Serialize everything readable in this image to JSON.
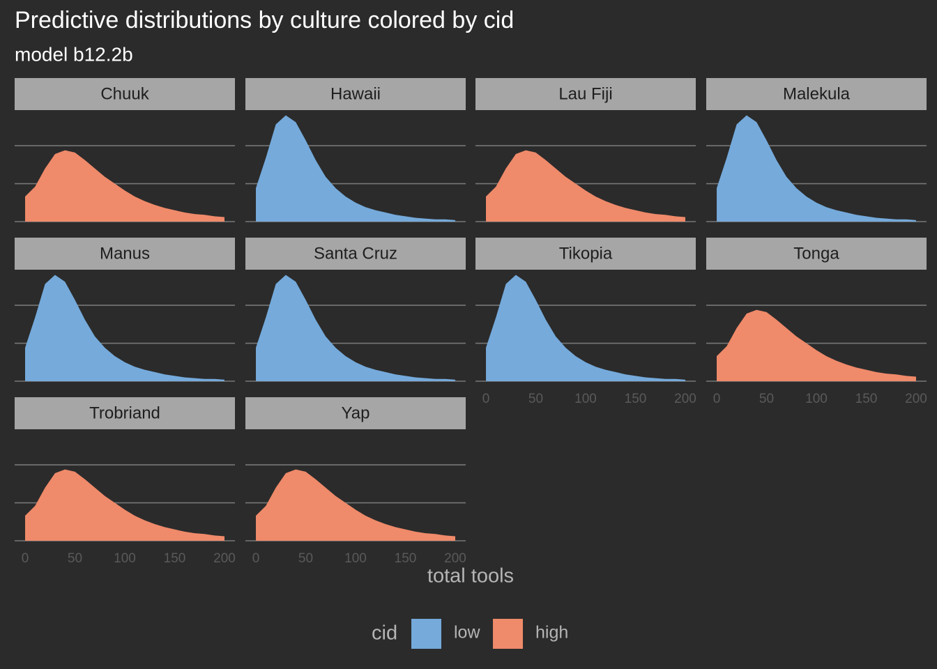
{
  "chart_data": {
    "type": "area",
    "title": "Predictive distributions by culture colored by cid",
    "subtitle": "model b12.2b",
    "x_label": "total tools",
    "legend_title": "cid",
    "legend_position": "bottom",
    "grid": true,
    "x": [
      0,
      10,
      20,
      30,
      40,
      50,
      60,
      70,
      80,
      90,
      100,
      110,
      120,
      130,
      140,
      150,
      160,
      170,
      180,
      190,
      200
    ],
    "series": [
      {
        "name": "low",
        "color": "#75aadb",
        "values": [
          0.0044,
          0.0084,
          0.0128,
          0.014,
          0.0131,
          0.0107,
          0.0081,
          0.0059,
          0.0044,
          0.0033,
          0.0025,
          0.0019,
          0.0015,
          0.0012,
          0.0009,
          0.0007,
          0.0005,
          0.0004,
          0.0003,
          0.0003,
          0.0002
        ]
      },
      {
        "name": "high",
        "color": "#ef8a6a",
        "values": [
          0.0033,
          0.0046,
          0.007,
          0.0089,
          0.0094,
          0.0091,
          0.0081,
          0.007,
          0.0059,
          0.005,
          0.0041,
          0.0033,
          0.0027,
          0.0022,
          0.0018,
          0.0015,
          0.0012,
          0.001,
          0.0009,
          0.0007,
          0.0006
        ]
      }
    ],
    "facets": [
      {
        "title": "Chuuk",
        "cid": "high"
      },
      {
        "title": "Hawaii",
        "cid": "low"
      },
      {
        "title": "Lau Fiji",
        "cid": "high"
      },
      {
        "title": "Malekula",
        "cid": "low"
      },
      {
        "title": "Manus",
        "cid": "low"
      },
      {
        "title": "Santa Cruz",
        "cid": "low"
      },
      {
        "title": "Tikopia",
        "cid": "low"
      },
      {
        "title": "Tonga",
        "cid": "high"
      },
      {
        "title": "Trobriand",
        "cid": "high"
      },
      {
        "title": "Yap",
        "cid": "high"
      }
    ],
    "xlim": [
      -10.5,
      210.5
    ],
    "xticks": [
      0,
      50,
      100,
      150,
      200
    ],
    "ylim": [
      0,
      0.0145
    ],
    "yticks": [
      0,
      0.005,
      0.01
    ]
  }
}
